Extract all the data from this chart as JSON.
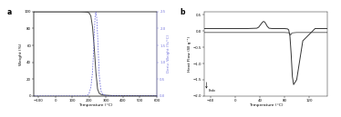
{
  "panel_a": {
    "tga_x": [
      -125,
      -100,
      -75,
      -50,
      -25,
      0,
      25,
      50,
      75,
      100,
      125,
      150,
      175,
      190,
      200,
      210,
      220,
      230,
      240,
      250,
      260,
      270,
      280,
      300,
      325,
      350,
      400,
      450,
      500,
      600
    ],
    "tga_y": [
      100,
      100,
      100,
      100,
      100,
      100,
      100,
      100,
      100,
      100,
      100,
      100,
      99.8,
      99.5,
      98.5,
      95,
      82,
      58,
      28,
      8,
      3,
      1.8,
      1.2,
      0.8,
      0.5,
      0.3,
      0.2,
      0.15,
      0.1,
      0.05
    ],
    "dtga_x": [
      -125,
      -100,
      -50,
      0,
      50,
      100,
      150,
      175,
      190,
      200,
      210,
      220,
      225,
      230,
      235,
      240,
      245,
      250,
      255,
      260,
      270,
      280,
      300,
      350,
      400,
      500,
      600
    ],
    "dtga_y": [
      0,
      0,
      0,
      0,
      0,
      0,
      0,
      0.005,
      0.02,
      0.08,
      0.25,
      0.7,
      1.2,
      1.8,
      2.35,
      2.5,
      2.3,
      1.8,
      1.2,
      0.6,
      0.15,
      0.05,
      0.01,
      0.005,
      0.002,
      0.001,
      0.0
    ],
    "tga_color": "#444444",
    "dtga_color": "#7777dd",
    "xlabel": "Temperature (°C)",
    "ylabel_left": "Weight (%)",
    "ylabel_right": "Deriv. Weight (%/°C)",
    "xlim": [
      -125,
      600
    ],
    "ylim_left": [
      0,
      100
    ],
    "ylim_right": [
      0,
      2.5
    ],
    "xticks": [
      -100,
      0,
      100,
      200,
      300,
      400,
      500,
      600
    ],
    "yticks_left": [
      0,
      20,
      40,
      60,
      80,
      100
    ],
    "yticks_right": [
      0.0,
      0.5,
      1.0,
      1.5,
      2.0,
      2.5
    ],
    "label": "a"
  },
  "panel_b": {
    "curve1_x": [
      -50,
      -40,
      -20,
      0,
      20,
      35,
      38,
      40,
      42,
      44,
      46,
      48,
      50,
      52,
      55,
      60,
      65,
      70,
      80,
      85,
      87,
      89,
      91,
      93,
      95,
      100,
      105,
      110,
      130,
      150
    ],
    "curve1_y": [
      0.08,
      0.08,
      0.08,
      0.08,
      0.08,
      0.09,
      0.12,
      0.17,
      0.22,
      0.27,
      0.3,
      0.28,
      0.22,
      0.15,
      0.09,
      0.08,
      0.08,
      0.08,
      0.08,
      0.07,
      0.04,
      -0.15,
      -0.7,
      -1.4,
      -1.65,
      -1.5,
      -0.9,
      -0.3,
      0.08,
      0.08
    ],
    "curve2_x": [
      -50,
      -40,
      -20,
      0,
      20,
      40,
      60,
      80,
      87,
      89,
      90,
      91,
      92,
      95,
      100,
      110,
      130,
      150
    ],
    "curve2_y": [
      -0.04,
      -0.04,
      -0.04,
      -0.04,
      -0.04,
      -0.04,
      -0.04,
      -0.04,
      -0.05,
      -0.08,
      -0.12,
      -0.1,
      -0.06,
      -0.05,
      -0.04,
      -0.04,
      -0.04,
      -0.04
    ],
    "color1": "#333333",
    "color2": "#666666",
    "xlabel": "Temperature (°C)",
    "ylabel": "Heat Flow (W g⁻¹)",
    "xlim": [
      -50,
      150
    ],
    "ylim": [
      -2.0,
      0.6
    ],
    "xticks": [
      -40,
      0,
      40,
      80,
      120
    ],
    "yticks": [
      -2.0,
      -1.5,
      -1.0,
      -0.5,
      0.0,
      0.5
    ],
    "label": "b",
    "endo_label": "Endo"
  }
}
